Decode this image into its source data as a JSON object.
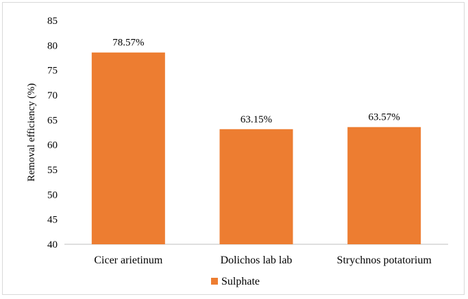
{
  "chart_data": {
    "type": "bar",
    "categories": [
      "Cicer arietinum",
      "Dolichos lab lab",
      "Strychnos potatorium"
    ],
    "series": [
      {
        "name": "Sulphate",
        "values": [
          78.57,
          63.15,
          63.57
        ],
        "data_labels": [
          "78.57%",
          "63.15%",
          "63.57%"
        ],
        "color": "#ed7d31"
      }
    ],
    "title": "",
    "xlabel": "",
    "ylabel": "Removal efficiency (%)",
    "ylim": [
      40,
      85
    ],
    "yticks": [
      "40",
      "45",
      "50",
      "55",
      "60",
      "65",
      "70",
      "75",
      "80",
      "85"
    ],
    "grid": false,
    "legend": {
      "placement": "bottom",
      "entries": [
        "Sulphate"
      ]
    }
  }
}
